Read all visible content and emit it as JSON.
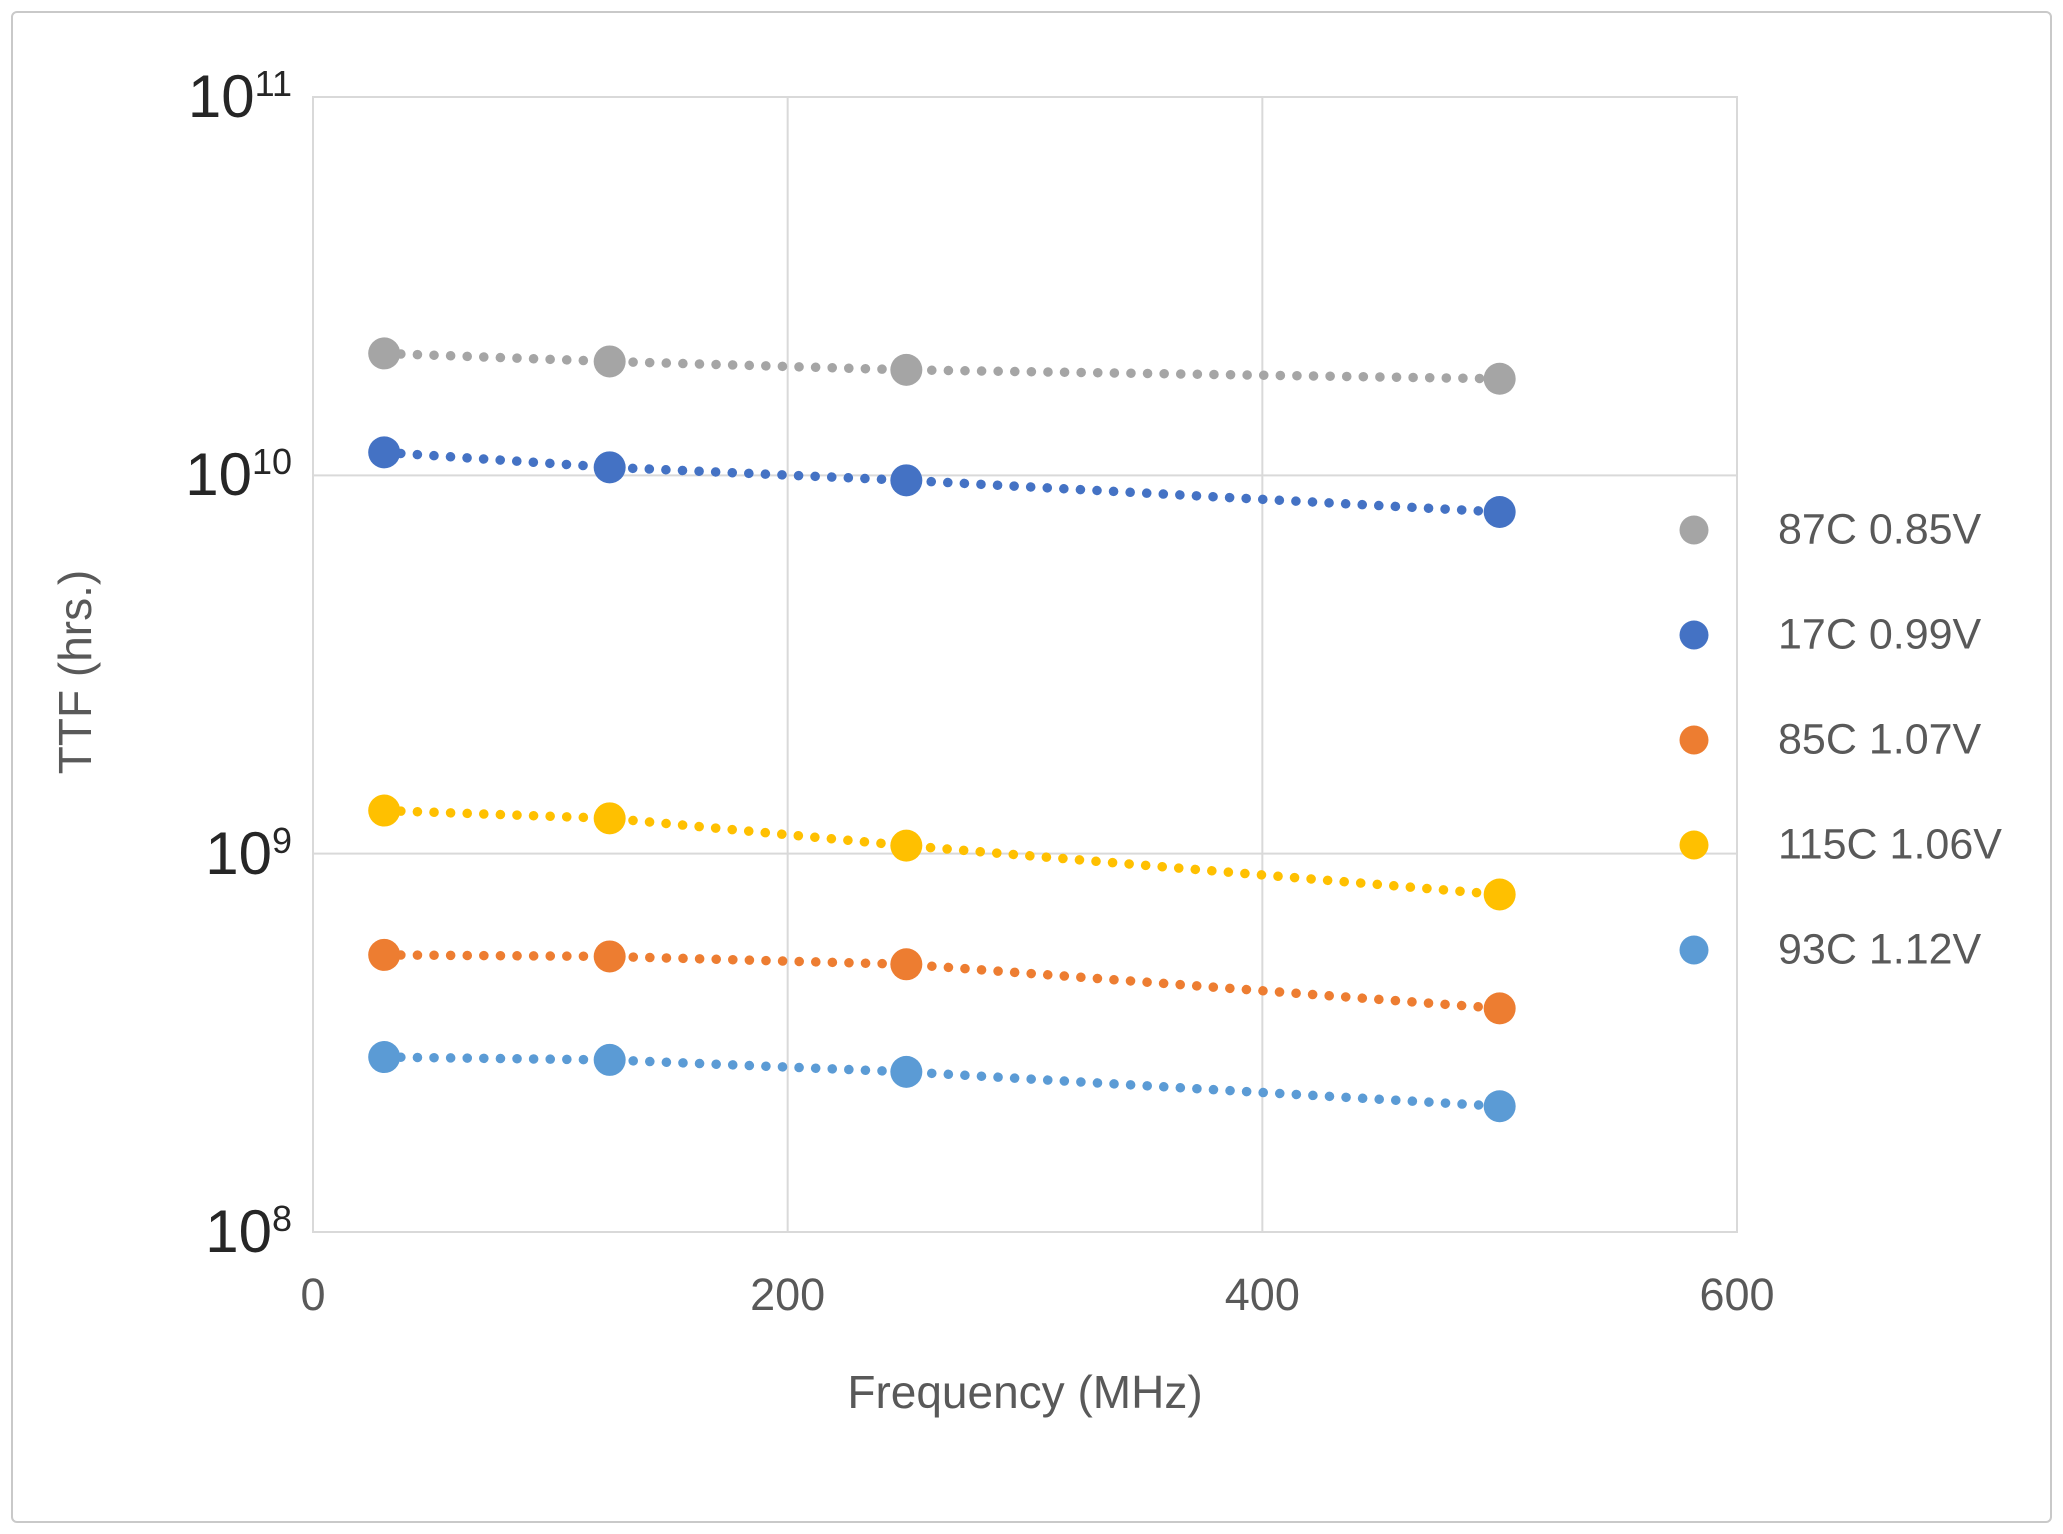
{
  "figure": {
    "x_axis_title": "Frequency (MHz)",
    "y_axis_title": "TTF (hrs.)"
  },
  "chart_data": {
    "type": "scatter",
    "title": "",
    "xlabel": "Frequency (MHz)",
    "ylabel": "TTF (hrs.)",
    "x": [
      30,
      125,
      250,
      500
    ],
    "xlim": [
      0,
      600
    ],
    "ylim": [
      100000000.0,
      100000000000.0
    ],
    "y_scale": "log",
    "grid": true,
    "line_style": "dotted",
    "legend_position": "right",
    "gridline_color": "#d9d9d9",
    "x_ticks": [
      {
        "label": "0",
        "value": 0
      },
      {
        "label": "200",
        "value": 200
      },
      {
        "label": "400",
        "value": 400
      },
      {
        "label": "600",
        "value": 600
      }
    ],
    "y_ticks": [
      {
        "base": "10",
        "exp": "11",
        "value": 100000000000.0
      },
      {
        "base": "10",
        "exp": "10",
        "value": 10000000000.0
      },
      {
        "base": "10",
        "exp": "9",
        "value": 1000000000.0
      },
      {
        "base": "10",
        "exp": "8",
        "value": 100000000.0
      }
    ],
    "series": [
      {
        "name": "87C 0.85V",
        "color": "#A5A5A5",
        "values": [
          21000000000.0,
          20000000000.0,
          19000000000.0,
          18000000000.0
        ]
      },
      {
        "name": "17C 0.99V",
        "color": "#4472C4",
        "values": [
          11500000000.0,
          10500000000.0,
          9700000000.0,
          8000000000.0
        ]
      },
      {
        "name": "85C 1.07V",
        "color": "#ED7D31",
        "values": [
          540000000.0,
          535000000.0,
          510000000.0,
          390000000.0
        ]
      },
      {
        "name": "115C 1.06V",
        "color": "#FFC000",
        "values": [
          1300000000.0,
          1240000000.0,
          1050000000.0,
          780000000.0
        ]
      },
      {
        "name": "93C 1.12V",
        "color": "#5B9BD5",
        "values": [
          290000000.0,
          285000000.0,
          265000000.0,
          215000000.0
        ]
      }
    ]
  }
}
